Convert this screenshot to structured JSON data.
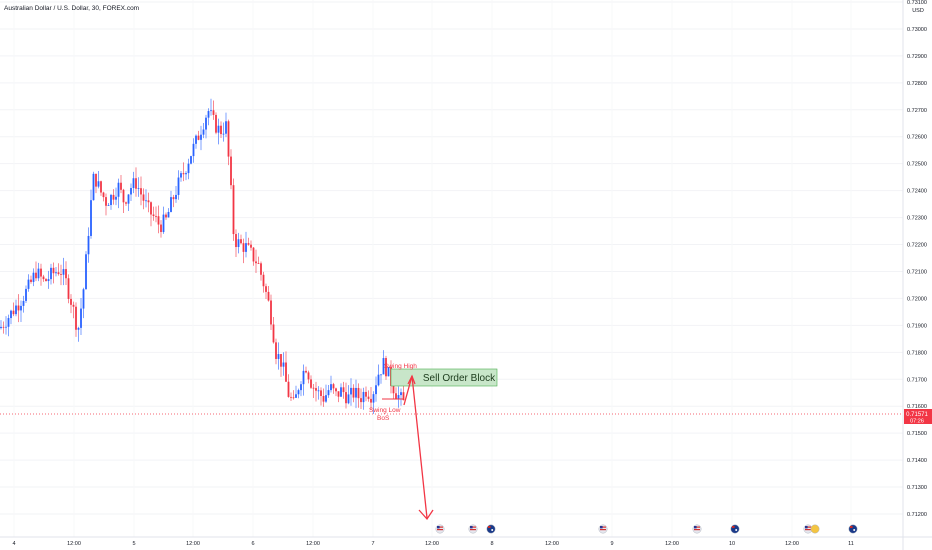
{
  "chart_data": {
    "type": "candlestick",
    "title": "Australian Dollar / U.S. Dollar, 30, FOREX.com",
    "currency": "USD",
    "y_range": [
      0.7115,
      0.731
    ],
    "y_ticks": [
      "0.73100",
      "0.73000",
      "0.72900",
      "0.72800",
      "0.72700",
      "0.72600",
      "0.72500",
      "0.72400",
      "0.72300",
      "0.72200",
      "0.72100",
      "0.72000",
      "0.71900",
      "0.71800",
      "0.71700",
      "0.71600",
      "0.71500",
      "0.71400",
      "0.71300",
      "0.71200"
    ],
    "x_ticks": [
      "4",
      "12:00",
      "5",
      "12:00",
      "6",
      "12:00",
      "7",
      "12:00",
      "8",
      "12:00",
      "9",
      "12:00",
      "10",
      "12:00",
      "11"
    ],
    "current_price": "0.71571",
    "countdown": "07:26",
    "colors": {
      "up": "#2962ff",
      "down": "#f23645",
      "price_line": "#f23645",
      "order_block": "#c8e6c9",
      "order_block_border": "#4caf50"
    },
    "series": [],
    "annotations": {
      "swing_high": "Swing High",
      "swing_low": "Swing Low",
      "bos": "BoS",
      "order_block": "Sell Order Block"
    },
    "events": [
      "us-flag-icon",
      "us-flag-icon",
      "au-flag-icon",
      "us-flag-icon",
      "us-flag-icon",
      "au-flag-icon",
      "us-flag-icon",
      "au-flag-icon"
    ]
  }
}
